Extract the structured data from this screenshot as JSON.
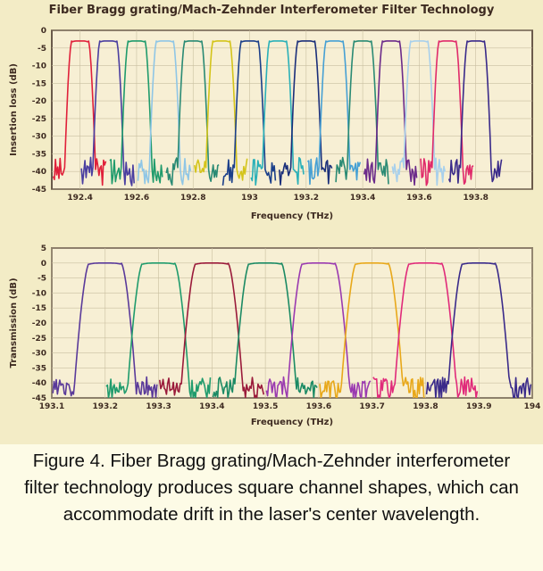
{
  "figure_title": "Fiber Bragg grating/Mach-Zehnder Interferometer Filter Technology",
  "caption": "Figure 4. Fiber Bragg grating/Mach-Zehnder interferometer filter technology produces square channel shapes, which can accommodate drift in the laser's center wavelength.",
  "chart_data": [
    {
      "type": "line",
      "xlabel": "Frequency (THz)",
      "ylabel": "Insertion loss (dB)",
      "ylim": [
        -45,
        0
      ],
      "xlim": [
        192.3,
        194.0
      ],
      "yticks": [
        0,
        -5,
        -10,
        -15,
        -20,
        -25,
        -30,
        -35,
        -40,
        -45
      ],
      "xticks": [
        192.4,
        192.6,
        192.8,
        193.0,
        193.2,
        193.4,
        193.6,
        193.8
      ],
      "xtick_labels": [
        "192.4",
        "192.6",
        "192.8",
        "193",
        "193.2",
        "193.4",
        "193.6",
        "193.8"
      ],
      "grid": true,
      "channels": [
        {
          "center": 192.4,
          "color": "#e0203a"
        },
        {
          "center": 192.5,
          "color": "#4a3ea0"
        },
        {
          "center": 192.6,
          "color": "#1f9b6c"
        },
        {
          "center": 192.7,
          "color": "#8fc6e6"
        },
        {
          "center": 192.8,
          "color": "#2a8a74"
        },
        {
          "center": 192.9,
          "color": "#d4c41a"
        },
        {
          "center": 193.0,
          "color": "#1b3f8a"
        },
        {
          "center": 193.1,
          "color": "#2ab0b8"
        },
        {
          "center": 193.2,
          "color": "#1b2f7a"
        },
        {
          "center": 193.3,
          "color": "#46a0d4"
        },
        {
          "center": 193.4,
          "color": "#2a8a74"
        },
        {
          "center": 193.5,
          "color": "#6b2a8a"
        },
        {
          "center": 193.6,
          "color": "#a8d0ec"
        },
        {
          "center": 193.7,
          "color": "#e02a6a"
        },
        {
          "center": 193.8,
          "color": "#3a2a8a"
        }
      ],
      "passband_level": -3,
      "passband_halfwidth": 0.03,
      "edge_width": 0.025,
      "floor": -40
    },
    {
      "type": "line",
      "xlabel": "Frequency (THz)",
      "ylabel": "Transmission (dB)",
      "ylim": [
        -45,
        5
      ],
      "xlim": [
        193.1,
        194.0
      ],
      "yticks": [
        5,
        0,
        -5,
        -10,
        -15,
        -20,
        -25,
        -30,
        -35,
        -40,
        -45
      ],
      "xticks": [
        193.1,
        193.2,
        193.3,
        193.4,
        193.5,
        193.6,
        193.7,
        193.8,
        193.9,
        194.0
      ],
      "xtick_labels": [
        "193.1",
        "193.2",
        "193.3",
        "193.4",
        "193.5",
        "193.6",
        "193.7",
        "193.8",
        "193.9",
        "194"
      ],
      "grid": true,
      "channels": [
        {
          "center": 193.2,
          "color": "#5a3a9a"
        },
        {
          "center": 193.3,
          "color": "#1f9b6c"
        },
        {
          "center": 193.4,
          "color": "#9a1a3a"
        },
        {
          "center": 193.5,
          "color": "#1b8a64"
        },
        {
          "center": 193.6,
          "color": "#9a3ab0"
        },
        {
          "center": 193.7,
          "color": "#e8a81a"
        },
        {
          "center": 193.8,
          "color": "#e02a7a"
        },
        {
          "center": 193.9,
          "color": "#3a2a8a"
        }
      ],
      "passband_level": 0,
      "passband_halfwidth": 0.03,
      "edge_width": 0.028,
      "floor": -42
    }
  ]
}
